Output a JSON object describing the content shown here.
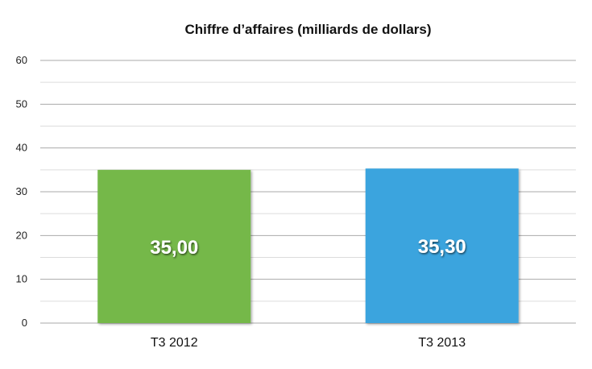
{
  "chart_data": {
    "type": "bar",
    "title": "Chiffre d’affaires (milliards de dollars)",
    "categories": [
      "T3 2012",
      "T3 2013"
    ],
    "values": [
      35.0,
      35.3
    ],
    "value_labels": [
      "35,00",
      "35,30"
    ],
    "bar_colors": [
      "#74b84a",
      "#3aa4de"
    ],
    "ylim": [
      0,
      60
    ],
    "yticks": [
      0,
      10,
      20,
      30,
      40,
      50,
      60
    ],
    "grid": true,
    "xlabel": "",
    "ylabel": ""
  }
}
